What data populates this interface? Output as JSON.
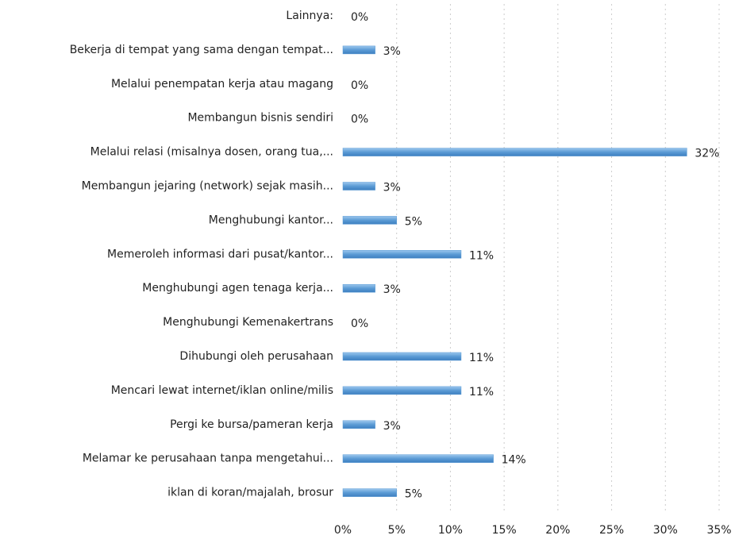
{
  "chart_data": {
    "type": "hbar",
    "categories": [
      "Lainnya:",
      "Bekerja di tempat yang sama dengan tempat...",
      "Melalui penempatan kerja atau magang",
      "Membangun bisnis sendiri",
      "Melalui relasi (misalnya dosen, orang tua,...",
      "Membangun jejaring (network) sejak masih...",
      "Menghubungi kantor...",
      "Memeroleh informasi dari pusat/kantor...",
      "Menghubungi agen tenaga kerja...",
      "Menghubungi Kemenakertrans",
      "Dihubungi oleh perusahaan",
      "Mencari lewat internet/iklan online/milis",
      "Pergi ke bursa/pameran kerja",
      "Melamar ke perusahaan tanpa mengetahui...",
      "iklan di koran/majalah, brosur"
    ],
    "values": [
      0,
      3,
      0,
      0,
      32,
      3,
      5,
      11,
      3,
      0,
      11,
      11,
      3,
      14,
      5
    ],
    "value_labels": [
      "0%",
      "3%",
      "0%",
      "0%",
      "32%",
      "3%",
      "5%",
      "11%",
      "3%",
      "0%",
      "11%",
      "11%",
      "3%",
      "14%",
      "5%"
    ],
    "color": "#5b9bd5",
    "xlim": [
      0,
      35
    ],
    "xticks": [
      {
        "value": 0,
        "label": "0%"
      },
      {
        "value": 5,
        "label": "5%"
      },
      {
        "value": 10,
        "label": "10%"
      },
      {
        "value": 15,
        "label": "15%"
      },
      {
        "value": 20,
        "label": "20%"
      },
      {
        "value": 25,
        "label": "25%"
      },
      {
        "value": 30,
        "label": "30%"
      },
      {
        "value": 35,
        "label": "35%"
      }
    ],
    "grid": true
  }
}
